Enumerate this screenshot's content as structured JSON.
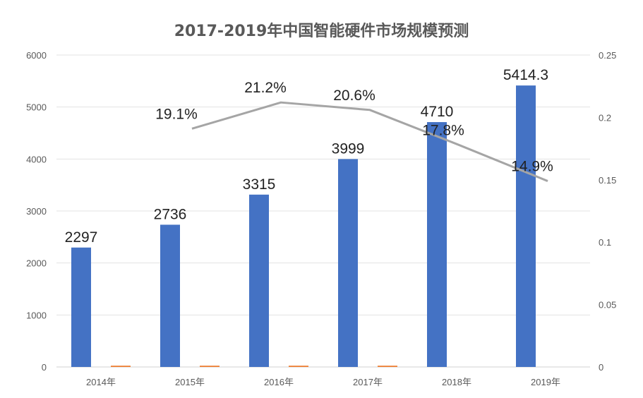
{
  "chart_data": {
    "type": "bar",
    "title": "2017-2019年中国智能硬件市场规模预测",
    "categories": [
      "2014年",
      "2015年",
      "2016年",
      "2017年",
      "2018年",
      "2019年"
    ],
    "series": [
      {
        "chart_type": "bar",
        "axis": "left",
        "color": "#4472C4",
        "values": [
          2297,
          2736,
          3315,
          3999,
          4710,
          5414.3
        ],
        "data_labels": [
          "2297",
          "2736",
          "3315",
          "3999",
          "4710",
          "5414.3"
        ]
      },
      {
        "chart_type": "bar",
        "axis": "right",
        "color": "#ED7D31",
        "values": [
          0.001,
          0.001,
          0.001,
          0.001,
          0,
          0
        ]
      },
      {
        "chart_type": "line",
        "axis": "right",
        "color": "#A5A5A5",
        "values": [
          null,
          0.191,
          0.212,
          0.206,
          0.178,
          0.149
        ],
        "data_labels": [
          null,
          "19.1%",
          "21.2%",
          "20.6%",
          "17.8%",
          "14.9%"
        ]
      }
    ],
    "y_left": {
      "ylim": [
        0,
        6000
      ],
      "ticks": [
        "0",
        "1000",
        "2000",
        "3000",
        "4000",
        "5000",
        "6000"
      ]
    },
    "y_right": {
      "ylim": [
        0,
        0.25
      ],
      "ticks": [
        "0",
        "0.05",
        "0.1",
        "0.15",
        "0.2",
        "0.25"
      ]
    },
    "grid": true,
    "legend": "none"
  }
}
